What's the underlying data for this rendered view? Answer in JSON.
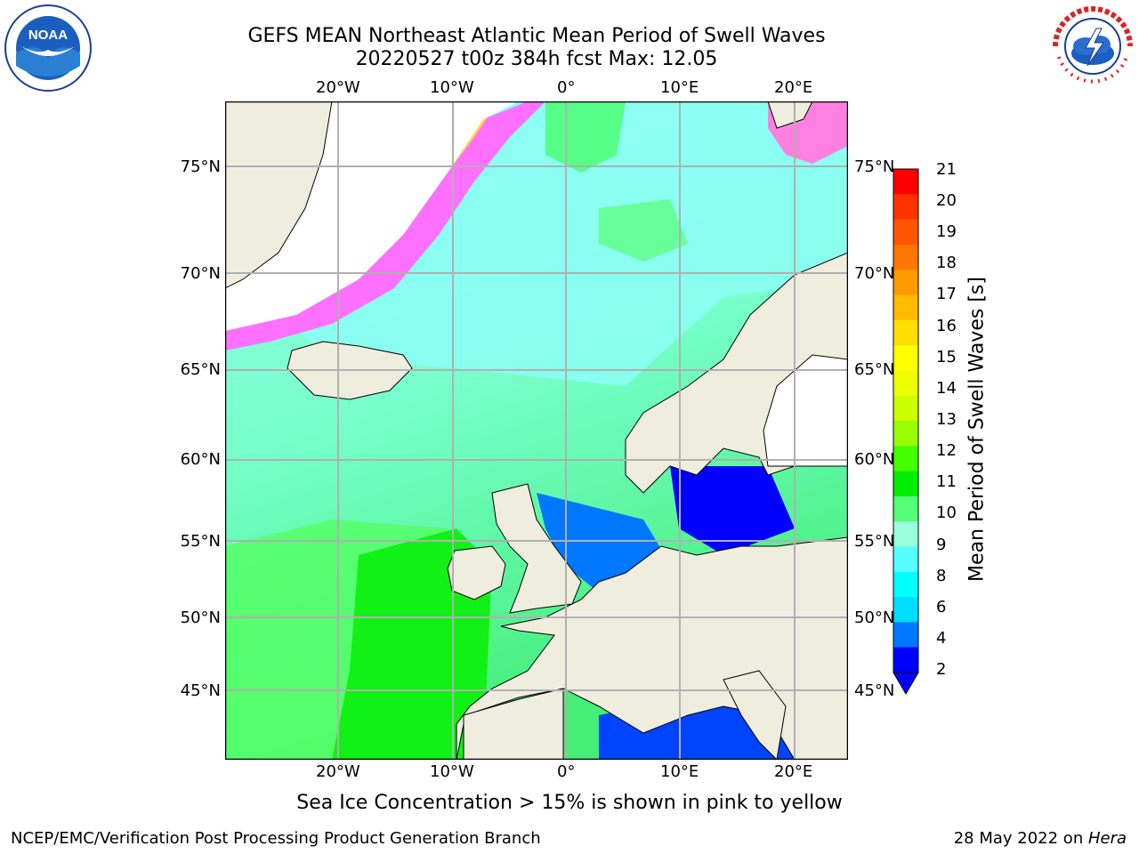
{
  "header": {
    "title_line1": "GEFS MEAN Northeast Atlantic Mean Period of Swell Waves",
    "title_line2": "20220527 t00z 384h fcst   Max: 12.05"
  },
  "logos": {
    "left": {
      "name": "noaa-logo",
      "text": "NOAA"
    },
    "right": {
      "name": "nws-logo",
      "text": "NATIONAL WEATHER SERVICE"
    }
  },
  "map": {
    "lon_ticks_top": [
      "20°W",
      "10°W",
      "0°",
      "10°E",
      "20°E"
    ],
    "lon_ticks_bottom": [
      "20°W",
      "10°W",
      "0°",
      "10°E",
      "20°E"
    ],
    "lat_ticks_left": [
      "75°N",
      "70°N",
      "65°N",
      "60°N",
      "55°N",
      "50°N",
      "45°N"
    ],
    "lat_ticks_right": [
      "75°N",
      "70°N",
      "65°N",
      "60°N",
      "55°N",
      "50°N",
      "45°N"
    ],
    "colors": {
      "land": "#efedde",
      "ice_white": "#ffffff",
      "ice_pink": "#ff70ff",
      "ice_yellow": "#ffd850",
      "grid": "#b0b0b0"
    }
  },
  "colorbar": {
    "label": "Mean Period of Swell Waves [s]",
    "ticks": [
      "21",
      "20",
      "19",
      "18",
      "17",
      "16",
      "15",
      "14",
      "13",
      "12",
      "11",
      "10",
      "9",
      "8",
      "6",
      "4",
      "2"
    ],
    "colors": [
      "#ff0000",
      "#ff3300",
      "#ff5500",
      "#ff7700",
      "#ff9900",
      "#ffbb00",
      "#ffdd00",
      "#ffff00",
      "#eeff00",
      "#ccff00",
      "#99ff00",
      "#44ff00",
      "#00ee00",
      "#55ff77",
      "#99ffdd",
      "#55ffff",
      "#00ffff",
      "#00ddff",
      "#0077ff",
      "#0000ff"
    ]
  },
  "caption": "Sea Ice Concentration > 15% is shown in pink to yellow",
  "footer": {
    "left": "NCEP/EMC/Verification Post Processing Product Generation Branch",
    "right_date": "28 May 2022 on ",
    "right_host": "Hera"
  }
}
